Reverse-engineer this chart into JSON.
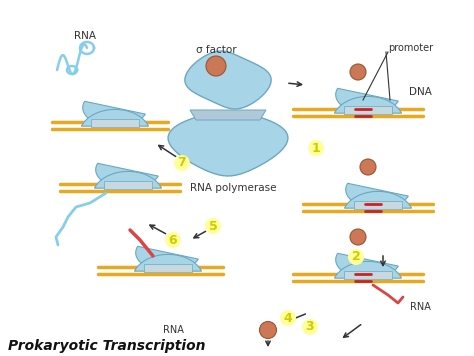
{
  "title": "Prokaryotic Transcription",
  "background_color": "#ffffff",
  "poly_color": "#a8d4e8",
  "poly_edge": "#6aa8c0",
  "sigma_color": "#cc7755",
  "sigma_edge": "#995533",
  "dna_color": "#e8a820",
  "rna_color": "#87ceeb",
  "rna_red": "#dd4444",
  "arrow_color": "#333333",
  "num_color": "#cccc00",
  "num_bg": "#ffff99",
  "label_color": "#333333",
  "title_fontsize": 10,
  "label_fontsize": 7,
  "num_fontsize": 9,
  "center_label": "RNA polymerase",
  "sigma_label": "σ factor",
  "promoter_label": "promoter",
  "dna_label": "DNA",
  "rna_label": "RNA"
}
